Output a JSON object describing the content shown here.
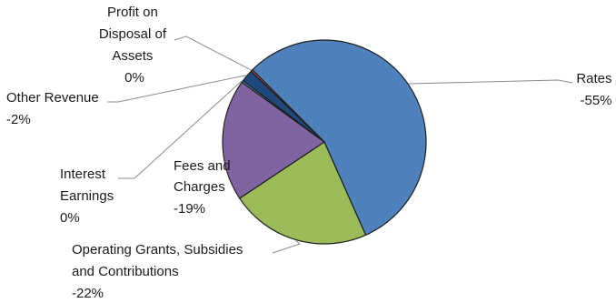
{
  "chart_data": {
    "type": "pie",
    "title": "",
    "slices": [
      {
        "label": [
          "Rates",
          "-55%"
        ],
        "value": 55,
        "color": "#4f81bd"
      },
      {
        "label": [
          "Operating Grants, Subsidies",
          "and Contributions",
          "-22%"
        ],
        "value": 22,
        "color": "#9bbb59"
      },
      {
        "label": [
          "Fees and",
          "Charges",
          "-19%"
        ],
        "value": 19,
        "color": "#8064a2"
      },
      {
        "label": [
          "Interest",
          "Earnings",
          "0%"
        ],
        "value": 0.3,
        "color": "#4bacc6"
      },
      {
        "label": [
          "Other Revenue",
          "-2%"
        ],
        "value": 1.9,
        "color": "#1f497d"
      },
      {
        "label": [
          "Profit on",
          "Disposal of",
          "Assets",
          "0%"
        ],
        "value": 0.3,
        "color": "#c0504d"
      }
    ]
  }
}
